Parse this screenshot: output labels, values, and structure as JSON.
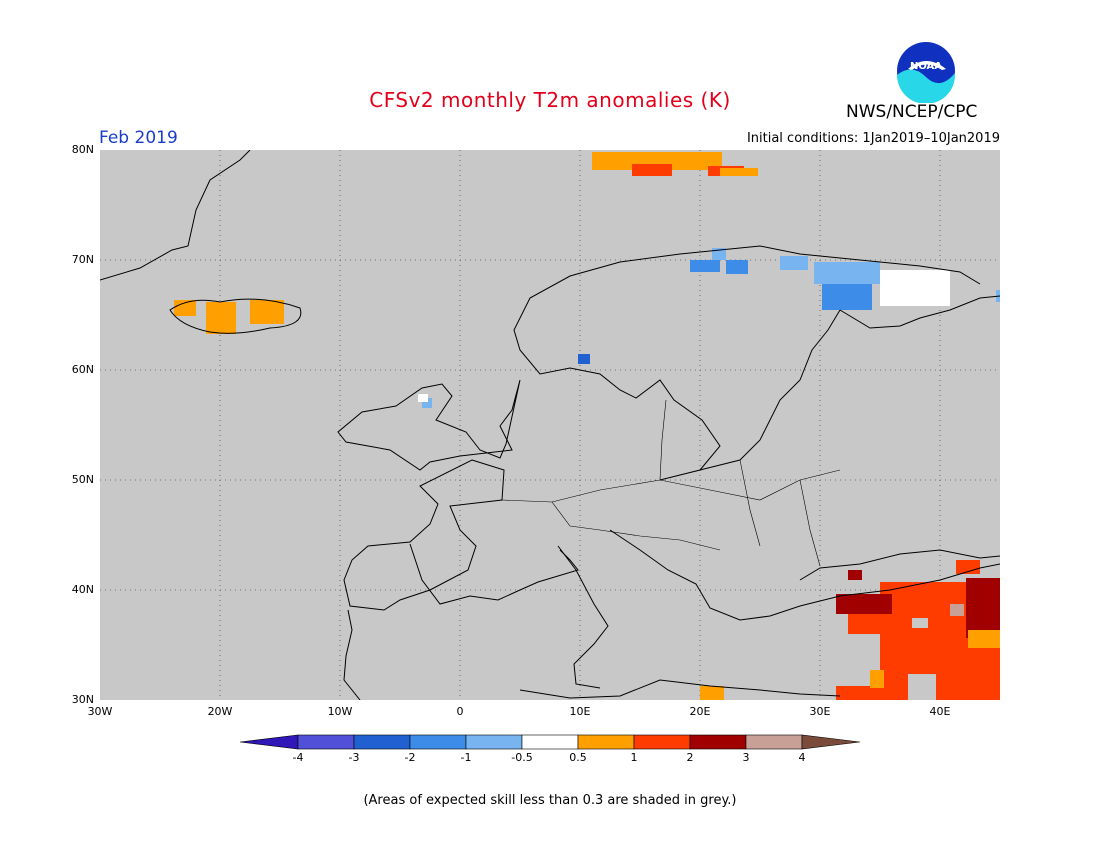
{
  "header": {
    "title": "CFSv2 monthly T2m anomalies (K)",
    "month": "Feb 2019",
    "initial_conditions": "Initial conditions: 1Jan2019–10Jan2019",
    "agency": "NWS/NCEP/CPC",
    "logo_text": "NOAA"
  },
  "map": {
    "region": "Europe",
    "lon_range": [
      -30,
      45
    ],
    "lat_range": [
      30,
      80
    ],
    "lat_labels": [
      "80N",
      "70N",
      "60N",
      "50N",
      "40N",
      "30N"
    ],
    "lon_labels": [
      "30W",
      "20W",
      "10W",
      "0",
      "10E",
      "20E",
      "30E",
      "40E"
    ],
    "background_color": "#c8c8c8",
    "anomaly_areas": [
      {
        "name": "Svalbard",
        "category": "1 to 2"
      },
      {
        "name": "Iceland",
        "category": "0.5 to 1"
      },
      {
        "name": "Northern Fennoscandia / Kola",
        "category": "-1 to -0.5"
      },
      {
        "name": "Southern Norway",
        "category": "-2 to -1"
      },
      {
        "name": "Turkey / Middle East",
        "category": "1 to 3"
      },
      {
        "name": "Libya coast",
        "category": "0.5 to 1"
      }
    ]
  },
  "colorbar": {
    "labels": [
      "-4",
      "-3",
      "-2",
      "-1",
      "-0.5",
      "0.5",
      "1",
      "2",
      "3",
      "4"
    ],
    "colors": [
      "#3018b8",
      "#5050d8",
      "#2060d0",
      "#3c8ce8",
      "#78b4f0",
      "#ffffff",
      "#ffa000",
      "#ff3c00",
      "#a00000",
      "#c8a096",
      "#7a4a3a"
    ]
  },
  "note": "(Areas of expected skill less than 0.3 are shaded in grey.)"
}
